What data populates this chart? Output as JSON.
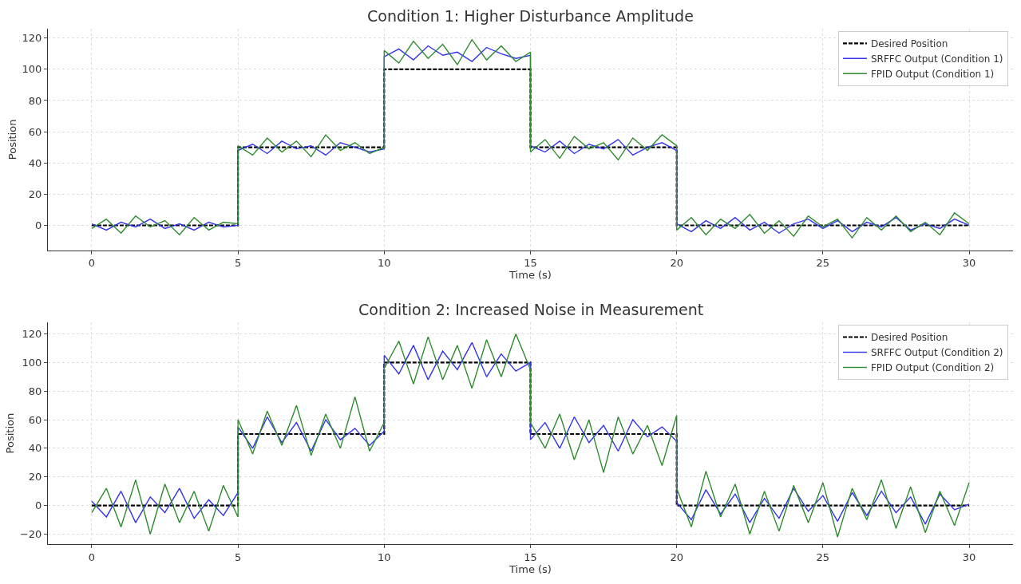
{
  "chart_data": [
    {
      "type": "line",
      "title": "Condition 1: Higher Disturbance Amplitude",
      "xlabel": "Time (s)",
      "ylabel": "Position",
      "x": [
        0,
        0.5,
        1,
        1.5,
        2,
        2.5,
        3,
        3.5,
        4,
        4.5,
        5,
        5,
        5.5,
        6,
        6.5,
        7,
        7.5,
        8,
        8.5,
        9,
        9.5,
        10,
        10,
        10.5,
        11,
        11.5,
        12,
        12.5,
        13,
        13.5,
        14,
        14.5,
        15,
        15,
        15.5,
        16,
        16.5,
        17,
        17.5,
        18,
        18.5,
        19,
        19.5,
        20,
        20,
        20.5,
        21,
        21.5,
        22,
        22.5,
        23,
        23.5,
        24,
        24.5,
        25,
        25.5,
        26,
        26.5,
        27,
        27.5,
        28,
        28.5,
        29,
        29.5,
        30
      ],
      "series": [
        {
          "name": "Desired Position",
          "color": "#000000",
          "line_style": "dashed",
          "x": [
            0,
            5,
            5,
            10,
            10,
            15,
            15,
            20,
            20,
            30
          ],
          "values": [
            0,
            0,
            50,
            50,
            100,
            100,
            50,
            50,
            0,
            0
          ]
        },
        {
          "name": "SRFFC Output (Condition 1)",
          "color": "#3333ee",
          "values": [
            1,
            -3,
            2,
            -1,
            4,
            -2,
            1,
            -3,
            2,
            -1,
            0,
            48,
            52,
            46,
            54,
            49,
            51,
            45,
            53,
            50,
            47,
            49,
            108,
            113,
            106,
            115,
            109,
            111,
            105,
            114,
            110,
            107,
            109,
            51,
            47,
            54,
            46,
            52,
            49,
            55,
            45,
            50,
            53,
            48,
            1,
            -4,
            3,
            -2,
            5,
            -3,
            2,
            -5,
            1,
            4,
            -2,
            3,
            -4,
            2,
            -1,
            5,
            -3,
            1,
            -2,
            4,
            0
          ]
        },
        {
          "name": "FPID Output (Condition 1)",
          "color": "#2e8b2e",
          "values": [
            -2,
            4,
            -5,
            6,
            -1,
            3,
            -6,
            5,
            -3,
            2,
            1,
            51,
            45,
            56,
            47,
            54,
            44,
            58,
            48,
            53,
            46,
            50,
            112,
            104,
            118,
            107,
            116,
            103,
            119,
            106,
            115,
            105,
            111,
            47,
            55,
            43,
            57,
            49,
            53,
            42,
            56,
            48,
            58,
            51,
            -3,
            5,
            -6,
            4,
            -2,
            7,
            -5,
            3,
            -7,
            6,
            -1,
            4,
            -8,
            5,
            -3,
            6,
            -4,
            2,
            -6,
            8,
            1
          ]
        }
      ],
      "xlim": [
        -1.5,
        31.5
      ],
      "xticks": [
        0,
        5,
        10,
        15,
        20,
        25,
        30
      ],
      "ylim": [
        -16,
        126
      ],
      "yticks": [
        0,
        20,
        40,
        60,
        80,
        100,
        120
      ],
      "grid": true,
      "legend": "top right",
      "marker": "none",
      "line_style": "solid"
    },
    {
      "type": "line",
      "title": "Condition 2: Increased Noise in Measurement",
      "xlabel": "Time (s)",
      "ylabel": "Position",
      "x": [
        0,
        0.5,
        1,
        1.5,
        2,
        2.5,
        3,
        3.5,
        4,
        4.5,
        5,
        5,
        5.5,
        6,
        6.5,
        7,
        7.5,
        8,
        8.5,
        9,
        9.5,
        10,
        10,
        10.5,
        11,
        11.5,
        12,
        12.5,
        13,
        13.5,
        14,
        14.5,
        15,
        15,
        15.5,
        16,
        16.5,
        17,
        17.5,
        18,
        18.5,
        19,
        19.5,
        20,
        20,
        20.5,
        21,
        21.5,
        22,
        22.5,
        23,
        23.5,
        24,
        24.5,
        25,
        25.5,
        26,
        26.5,
        27,
        27.5,
        28,
        28.5,
        29,
        29.5,
        30
      ],
      "series": [
        {
          "name": "Desired Position",
          "color": "#000000",
          "line_style": "dashed",
          "x": [
            0,
            5,
            5,
            10,
            10,
            15,
            15,
            20,
            20,
            30
          ],
          "values": [
            0,
            0,
            50,
            50,
            100,
            100,
            50,
            50,
            0,
            0
          ]
        },
        {
          "name": "SRFFC Output (Condition 2)",
          "color": "#3333ee",
          "values": [
            3,
            -8,
            10,
            -12,
            6,
            -5,
            12,
            -9,
            4,
            -7,
            9,
            55,
            40,
            62,
            44,
            58,
            38,
            60,
            46,
            54,
            42,
            52,
            105,
            92,
            112,
            88,
            108,
            95,
            114,
            90,
            106,
            94,
            100,
            46,
            58,
            40,
            62,
            44,
            56,
            38,
            60,
            48,
            55,
            45,
            2,
            -10,
            11,
            -6,
            8,
            -12,
            5,
            -9,
            12,
            -4,
            7,
            -11,
            9,
            -7,
            10,
            -5,
            6,
            -13,
            8,
            -3,
            1
          ]
        },
        {
          "name": "FPID Output (Condition 2)",
          "color": "#2e8b2e",
          "values": [
            -5,
            12,
            -15,
            18,
            -20,
            15,
            -12,
            10,
            -18,
            14,
            -8,
            60,
            36,
            66,
            42,
            70,
            35,
            64,
            40,
            76,
            38,
            58,
            96,
            115,
            85,
            118,
            88,
            112,
            82,
            116,
            90,
            120,
            95,
            58,
            40,
            64,
            32,
            60,
            23,
            62,
            36,
            56,
            28,
            63,
            12,
            -15,
            24,
            -8,
            15,
            -20,
            10,
            -18,
            14,
            -12,
            16,
            -22,
            12,
            -10,
            18,
            -16,
            13,
            -19,
            10,
            -14,
            16
          ]
        }
      ],
      "xlim": [
        -1.5,
        31.5
      ],
      "xticks": [
        0,
        5,
        10,
        15,
        20,
        25,
        30
      ],
      "ylim": [
        -27,
        128
      ],
      "yticks": [
        -20,
        0,
        20,
        40,
        60,
        80,
        100,
        120
      ],
      "grid": true,
      "legend": "top right",
      "marker": "none",
      "line_style": "solid"
    }
  ]
}
